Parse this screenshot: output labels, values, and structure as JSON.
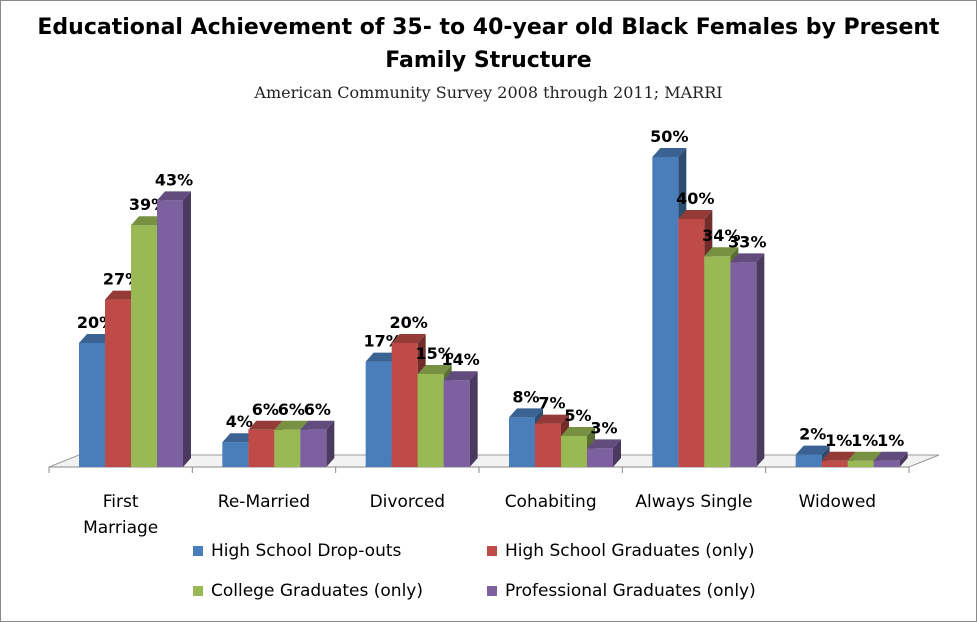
{
  "chart_data": {
    "type": "bar",
    "title": "Educational Achievement of 35- to 40-year old Black Females by Present Family Structure",
    "subtitle": "American Community Survey 2008 through 2011; MARRI",
    "categories": [
      "First Marriage",
      "Re-Married",
      "Divorced",
      "Cohabiting",
      "Always Single",
      "Widowed"
    ],
    "series": [
      {
        "name": "High School Drop-outs",
        "color": "#4a7ebb",
        "values": [
          20,
          4,
          17,
          8,
          50,
          2
        ]
      },
      {
        "name": "High School Graduates (only)",
        "color": "#be4b48",
        "values": [
          27,
          6,
          20,
          7,
          40,
          1
        ]
      },
      {
        "name": "College Graduates (only)",
        "color": "#98b954",
        "values": [
          39,
          6,
          15,
          5,
          34,
          1
        ]
      },
      {
        "name": "Professional Graduates (only)",
        "color": "#7d60a0",
        "values": [
          43,
          6,
          14,
          3,
          33,
          1
        ]
      }
    ],
    "data_label_format": "%",
    "ylim": [
      0,
      50
    ],
    "legend_position": "bottom",
    "three_d": true,
    "grid": false
  }
}
